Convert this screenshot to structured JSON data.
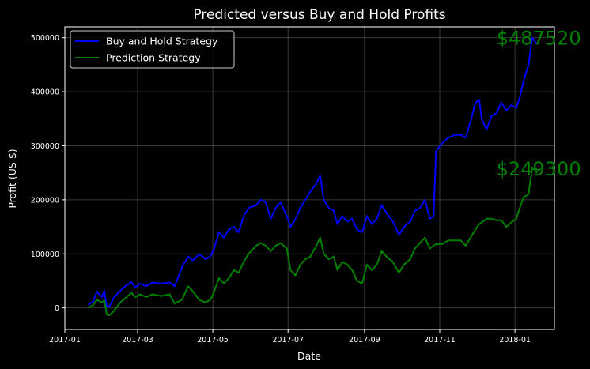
{
  "chart_data": {
    "type": "line",
    "title": "Predicted versus Buy and Hold Profits",
    "xlabel": "Date",
    "ylabel": "Profit  (US $)",
    "xlim": [
      "2017-01-01",
      "2018-02-02"
    ],
    "ylim": [
      -40000,
      520000
    ],
    "grid": true,
    "legend_position": "upper-left",
    "x_ticks": [
      "2017-01",
      "2017-03",
      "2017-05",
      "2017-07",
      "2017-09",
      "2017-11",
      "2018-01"
    ],
    "y_ticks": [
      "0",
      "100000",
      "200000",
      "300000",
      "400000",
      "500000"
    ],
    "series": [
      {
        "name": "Buy and Hold Strategy",
        "color": "#0000ff",
        "points": [
          [
            "2017-01-20",
            5000
          ],
          [
            "2017-01-24",
            12000
          ],
          [
            "2017-01-27",
            30000
          ],
          [
            "2017-01-31",
            20000
          ],
          [
            "2017-02-02",
            32000
          ],
          [
            "2017-02-04",
            3000
          ],
          [
            "2017-02-06",
            2000
          ],
          [
            "2017-02-10",
            20000
          ],
          [
            "2017-02-15",
            32000
          ],
          [
            "2017-02-20",
            42000
          ],
          [
            "2017-02-24",
            48000
          ],
          [
            "2017-02-27",
            38000
          ],
          [
            "2017-03-03",
            45000
          ],
          [
            "2017-03-08",
            40000
          ],
          [
            "2017-03-13",
            47000
          ],
          [
            "2017-03-20",
            45000
          ],
          [
            "2017-03-27",
            47000
          ],
          [
            "2017-03-31",
            40000
          ],
          [
            "2017-04-06",
            75000
          ],
          [
            "2017-04-11",
            95000
          ],
          [
            "2017-04-15",
            88000
          ],
          [
            "2017-04-20",
            100000
          ],
          [
            "2017-04-25",
            90000
          ],
          [
            "2017-04-29",
            95000
          ],
          [
            "2017-05-02",
            110000
          ],
          [
            "2017-05-06",
            140000
          ],
          [
            "2017-05-10",
            130000
          ],
          [
            "2017-05-14",
            145000
          ],
          [
            "2017-05-18",
            150000
          ],
          [
            "2017-05-22",
            140000
          ],
          [
            "2017-05-26",
            170000
          ],
          [
            "2017-05-30",
            185000
          ],
          [
            "2017-06-05",
            190000
          ],
          [
            "2017-06-09",
            200000
          ],
          [
            "2017-06-13",
            195000
          ],
          [
            "2017-06-17",
            165000
          ],
          [
            "2017-06-21",
            185000
          ],
          [
            "2017-06-25",
            195000
          ],
          [
            "2017-06-30",
            170000
          ],
          [
            "2017-07-03",
            150000
          ],
          [
            "2017-07-07",
            165000
          ],
          [
            "2017-07-11",
            185000
          ],
          [
            "2017-07-15",
            200000
          ],
          [
            "2017-07-19",
            215000
          ],
          [
            "2017-07-24",
            230000
          ],
          [
            "2017-07-27",
            245000
          ],
          [
            "2017-07-30",
            200000
          ],
          [
            "2017-08-03",
            185000
          ],
          [
            "2017-08-07",
            180000
          ],
          [
            "2017-08-10",
            155000
          ],
          [
            "2017-08-14",
            170000
          ],
          [
            "2017-08-18",
            160000
          ],
          [
            "2017-08-22",
            165000
          ],
          [
            "2017-08-26",
            145000
          ],
          [
            "2017-08-30",
            140000
          ],
          [
            "2017-09-03",
            170000
          ],
          [
            "2017-09-07",
            155000
          ],
          [
            "2017-09-11",
            165000
          ],
          [
            "2017-09-15",
            190000
          ],
          [
            "2017-09-19",
            175000
          ],
          [
            "2017-09-24",
            160000
          ],
          [
            "2017-09-29",
            135000
          ],
          [
            "2017-10-03",
            150000
          ],
          [
            "2017-10-08",
            160000
          ],
          [
            "2017-10-12",
            180000
          ],
          [
            "2017-10-16",
            185000
          ],
          [
            "2017-10-20",
            200000
          ],
          [
            "2017-10-24",
            165000
          ],
          [
            "2017-10-27",
            170000
          ],
          [
            "2017-10-29",
            290000
          ],
          [
            "2017-11-03",
            305000
          ],
          [
            "2017-11-08",
            315000
          ],
          [
            "2017-11-13",
            320000
          ],
          [
            "2017-11-18",
            320000
          ],
          [
            "2017-11-22",
            315000
          ],
          [
            "2017-11-26",
            345000
          ],
          [
            "2017-11-30",
            380000
          ],
          [
            "2017-12-03",
            385000
          ],
          [
            "2017-12-05",
            350000
          ],
          [
            "2017-12-09",
            330000
          ],
          [
            "2017-12-13",
            355000
          ],
          [
            "2017-12-17",
            360000
          ],
          [
            "2017-12-21",
            380000
          ],
          [
            "2017-12-25",
            365000
          ],
          [
            "2017-12-29",
            375000
          ],
          [
            "2018-01-02",
            370000
          ],
          [
            "2018-01-05",
            390000
          ],
          [
            "2018-01-08",
            420000
          ],
          [
            "2018-01-12",
            450000
          ],
          [
            "2018-01-15",
            500000
          ],
          [
            "2018-01-19",
            487520
          ]
        ]
      },
      {
        "name": "Prediction Strategy",
        "color": "#008000",
        "points": [
          [
            "2017-01-20",
            0
          ],
          [
            "2017-01-24",
            5000
          ],
          [
            "2017-01-27",
            15000
          ],
          [
            "2017-01-31",
            10000
          ],
          [
            "2017-02-02",
            14000
          ],
          [
            "2017-02-04",
            -12000
          ],
          [
            "2017-02-06",
            -14000
          ],
          [
            "2017-02-10",
            -5000
          ],
          [
            "2017-02-15",
            10000
          ],
          [
            "2017-02-20",
            20000
          ],
          [
            "2017-02-24",
            28000
          ],
          [
            "2017-02-27",
            20000
          ],
          [
            "2017-03-03",
            25000
          ],
          [
            "2017-03-08",
            20000
          ],
          [
            "2017-03-13",
            25000
          ],
          [
            "2017-03-20",
            22000
          ],
          [
            "2017-03-27",
            25000
          ],
          [
            "2017-03-31",
            8000
          ],
          [
            "2017-04-06",
            15000
          ],
          [
            "2017-04-11",
            40000
          ],
          [
            "2017-04-15",
            30000
          ],
          [
            "2017-04-20",
            15000
          ],
          [
            "2017-04-25",
            10000
          ],
          [
            "2017-04-29",
            15000
          ],
          [
            "2017-05-02",
            30000
          ],
          [
            "2017-05-06",
            55000
          ],
          [
            "2017-05-10",
            45000
          ],
          [
            "2017-05-14",
            55000
          ],
          [
            "2017-05-18",
            70000
          ],
          [
            "2017-05-22",
            65000
          ],
          [
            "2017-05-26",
            85000
          ],
          [
            "2017-05-30",
            100000
          ],
          [
            "2017-06-05",
            115000
          ],
          [
            "2017-06-09",
            120000
          ],
          [
            "2017-06-13",
            115000
          ],
          [
            "2017-06-17",
            105000
          ],
          [
            "2017-06-21",
            115000
          ],
          [
            "2017-06-25",
            120000
          ],
          [
            "2017-06-30",
            110000
          ],
          [
            "2017-07-03",
            70000
          ],
          [
            "2017-07-07",
            60000
          ],
          [
            "2017-07-11",
            80000
          ],
          [
            "2017-07-15",
            90000
          ],
          [
            "2017-07-19",
            95000
          ],
          [
            "2017-07-24",
            115000
          ],
          [
            "2017-07-27",
            130000
          ],
          [
            "2017-07-30",
            100000
          ],
          [
            "2017-08-03",
            90000
          ],
          [
            "2017-08-07",
            95000
          ],
          [
            "2017-08-10",
            70000
          ],
          [
            "2017-08-14",
            85000
          ],
          [
            "2017-08-18",
            80000
          ],
          [
            "2017-08-22",
            70000
          ],
          [
            "2017-08-26",
            50000
          ],
          [
            "2017-08-30",
            45000
          ],
          [
            "2017-09-03",
            80000
          ],
          [
            "2017-09-07",
            70000
          ],
          [
            "2017-09-11",
            80000
          ],
          [
            "2017-09-15",
            105000
          ],
          [
            "2017-09-19",
            95000
          ],
          [
            "2017-09-24",
            85000
          ],
          [
            "2017-09-29",
            65000
          ],
          [
            "2017-10-03",
            80000
          ],
          [
            "2017-10-08",
            90000
          ],
          [
            "2017-10-12",
            110000
          ],
          [
            "2017-10-16",
            120000
          ],
          [
            "2017-10-20",
            130000
          ],
          [
            "2017-10-24",
            110000
          ],
          [
            "2017-10-27",
            115000
          ],
          [
            "2017-10-29",
            118000
          ],
          [
            "2017-11-03",
            118000
          ],
          [
            "2017-11-08",
            125000
          ],
          [
            "2017-11-13",
            125000
          ],
          [
            "2017-11-18",
            125000
          ],
          [
            "2017-11-22",
            115000
          ],
          [
            "2017-11-26",
            130000
          ],
          [
            "2017-11-30",
            145000
          ],
          [
            "2017-12-03",
            155000
          ],
          [
            "2017-12-05",
            158000
          ],
          [
            "2017-12-09",
            165000
          ],
          [
            "2017-12-13",
            165000
          ],
          [
            "2017-12-17",
            162000
          ],
          [
            "2017-12-21",
            162000
          ],
          [
            "2017-12-25",
            150000
          ],
          [
            "2017-12-29",
            158000
          ],
          [
            "2018-01-02",
            165000
          ],
          [
            "2018-01-05",
            185000
          ],
          [
            "2018-01-08",
            205000
          ],
          [
            "2018-01-12",
            210000
          ],
          [
            "2018-01-15",
            260000
          ],
          [
            "2018-01-19",
            249300
          ]
        ]
      }
    ],
    "annotations": [
      {
        "text": "$487520",
        "x": "2017-12-17",
        "y": 500000,
        "color": "#008000"
      },
      {
        "text": "$249300",
        "x": "2017-12-17",
        "y": 258000,
        "color": "#008000"
      }
    ]
  }
}
